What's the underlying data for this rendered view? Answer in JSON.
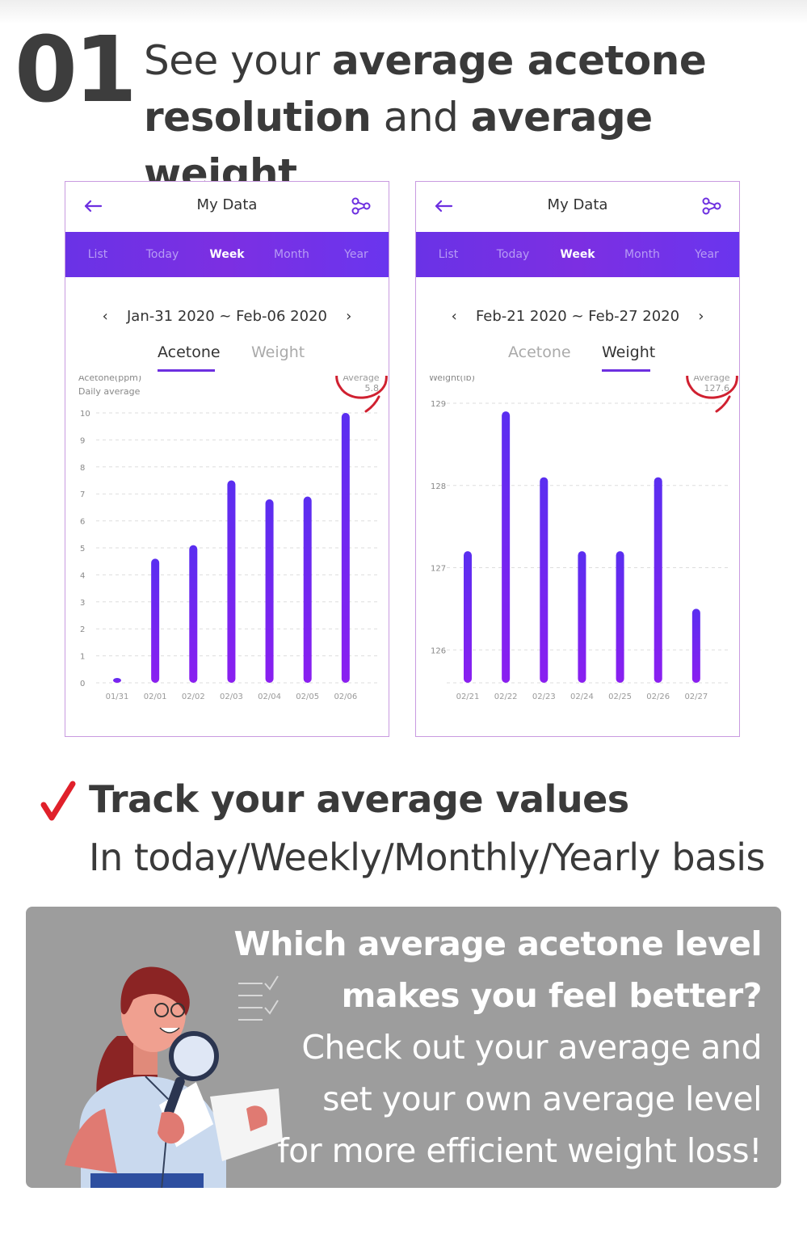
{
  "header": {
    "step": "01",
    "line1_plain": "See your ",
    "line1_bold": "average acetone",
    "line2_bold_a": "resolution",
    "line2_plain": " and ",
    "line2_bold_b": "average weight"
  },
  "screens": [
    {
      "title": "My Data",
      "tabs": [
        "List",
        "Today",
        "Week",
        "Month",
        "Year"
      ],
      "active_tab": "Week",
      "date_range": "Jan-31 2020 ~ Feb-06 2020",
      "segments": [
        "Acetone",
        "Weight"
      ],
      "active_segment": "Acetone",
      "icons": [
        "back-arrow-icon",
        "share-icon",
        "chevron-left-icon",
        "chevron-right-icon"
      ]
    },
    {
      "title": "My Data",
      "tabs": [
        "List",
        "Today",
        "Week",
        "Month",
        "Year"
      ],
      "active_tab": "Week",
      "date_range": "Feb-21 2020 ~ Feb-27 2020",
      "segments": [
        "Acetone",
        "Weight"
      ],
      "active_segment": "Weight",
      "icons": [
        "back-arrow-icon",
        "share-icon",
        "chevron-left-icon",
        "chevron-right-icon"
      ]
    }
  ],
  "chart_data": [
    {
      "type": "bar",
      "ylabel": "Acetone(ppm)",
      "ylabel2": "Daily average",
      "categories": [
        "01/31",
        "02/01",
        "02/02",
        "02/03",
        "02/04",
        "02/05",
        "02/06"
      ],
      "values": [
        0.1,
        4.6,
        5.1,
        7.5,
        6.8,
        6.9,
        10.0
      ],
      "ylim": [
        0,
        10
      ],
      "yticks": [
        "0",
        "1",
        "2",
        "3",
        "4",
        "5",
        "6",
        "7",
        "8",
        "9",
        "10"
      ],
      "average_label": "Average",
      "average_value": "5.8",
      "grid": true,
      "bar_gradient": [
        "#5a2ef0",
        "#8a1ff0"
      ]
    },
    {
      "type": "bar",
      "ylabel": "Weight(lb)",
      "categories": [
        "02/21",
        "02/22",
        "02/23",
        "02/24",
        "02/25",
        "02/26",
        "02/27"
      ],
      "values": [
        127.2,
        128.9,
        128.1,
        127.2,
        127.2,
        128.1,
        126.5
      ],
      "ylim": [
        125.6,
        129
      ],
      "yticks": [
        "126",
        "127",
        "128",
        "129"
      ],
      "average_label": "Average",
      "average_value": "127.6",
      "grid": true,
      "bar_gradient": [
        "#5a2ef0",
        "#8a1ff0"
      ]
    }
  ],
  "track": {
    "heading": "Track your average values",
    "subheading": "In today/Weekly/Monthly/Yearly basis",
    "icon": "checkmark-icon"
  },
  "promo": {
    "question_line1": "Which average acetone level",
    "question_line2": "makes you feel better?",
    "body_line1": "Check out your average and",
    "body_line2": "set your own average level",
    "body_line3": "for more efficient weight loss!",
    "illustration": "woman-with-magnifier-illustration"
  },
  "colors": {
    "accent": "#6d2fe0",
    "tabbar_start": "#6a32e6",
    "circle_red": "#d02030",
    "check_red": "#e0202a",
    "promo_bg": "#9d9d9d"
  }
}
